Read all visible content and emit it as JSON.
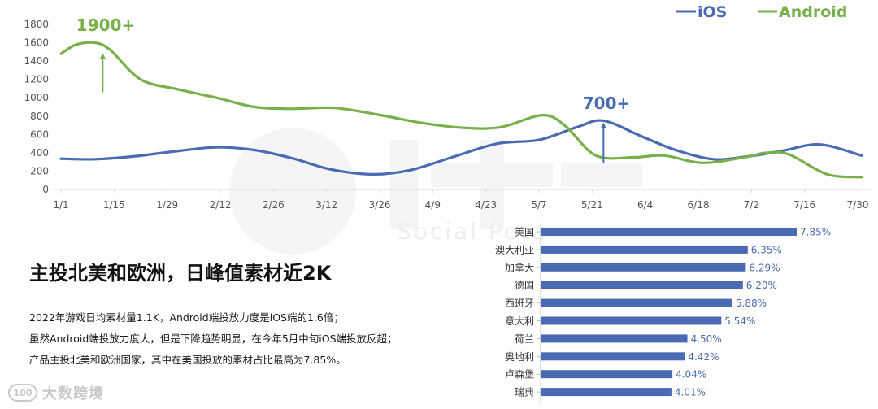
{
  "chart_data": [
    {
      "type": "line",
      "title": "",
      "xlabel": "",
      "ylabel": "",
      "ylim": [
        0,
        1800
      ],
      "y_ticks": [
        0,
        200,
        400,
        600,
        800,
        1000,
        1200,
        1400,
        1600,
        1800
      ],
      "grid": false,
      "legend": "top-right",
      "x_date_ticks": [
        "2022-01-01",
        "2022-01-15",
        "2022-01-29",
        "2022-02-12",
        "2022-02-26",
        "2022-03-12",
        "2022-03-26",
        "2022-04-09",
        "2022-04-23",
        "2022-05-07",
        "2022-05-21",
        "2022-06-04",
        "2022-06-18",
        "2022-07-02",
        "2022-07-16",
        "2022-07-30"
      ],
      "x_tick_labels": [
        "1/1",
        "1/15",
        "1/29",
        "2/12",
        "2/26",
        "3/12",
        "3/26",
        "4/9",
        "4/23",
        "5/7",
        "5/21",
        "6/4",
        "6/18",
        "7/2",
        "7/16",
        "7/30"
      ],
      "series": [
        {
          "name": "iOS",
          "color": "#4a6bb3",
          "points": [
            [
              "2022-01-01",
              335
            ],
            [
              "2022-01-10",
              330
            ],
            [
              "2022-01-20",
              360
            ],
            [
              "2022-02-01",
              420
            ],
            [
              "2022-02-11",
              460
            ],
            [
              "2022-02-21",
              430
            ],
            [
              "2022-03-03",
              340
            ],
            [
              "2022-03-13",
              220
            ],
            [
              "2022-03-24",
              165
            ],
            [
              "2022-04-03",
              210
            ],
            [
              "2022-04-14",
              350
            ],
            [
              "2022-04-26",
              500
            ],
            [
              "2022-05-07",
              540
            ],
            [
              "2022-05-17",
              680
            ],
            [
              "2022-05-24",
              750
            ],
            [
              "2022-06-03",
              580
            ],
            [
              "2022-06-12",
              430
            ],
            [
              "2022-06-22",
              330
            ],
            [
              "2022-07-01",
              360
            ],
            [
              "2022-07-10",
              420
            ],
            [
              "2022-07-20",
              490
            ],
            [
              "2022-07-31",
              370
            ]
          ]
        },
        {
          "name": "Android",
          "color": "#78b04a",
          "points": [
            [
              "2022-01-01",
              1480
            ],
            [
              "2022-01-05",
              1580
            ],
            [
              "2022-01-10",
              1600
            ],
            [
              "2022-01-14",
              1520
            ],
            [
              "2022-01-22",
              1200
            ],
            [
              "2022-02-01",
              1090
            ],
            [
              "2022-02-11",
              1000
            ],
            [
              "2022-02-21",
              900
            ],
            [
              "2022-03-03",
              880
            ],
            [
              "2022-03-14",
              890
            ],
            [
              "2022-03-25",
              820
            ],
            [
              "2022-04-07",
              720
            ],
            [
              "2022-04-18",
              670
            ],
            [
              "2022-04-27",
              680
            ],
            [
              "2022-05-08",
              810
            ],
            [
              "2022-05-14",
              690
            ],
            [
              "2022-05-22",
              370
            ],
            [
              "2022-06-01",
              350
            ],
            [
              "2022-06-09",
              370
            ],
            [
              "2022-06-19",
              290
            ],
            [
              "2022-06-30",
              350
            ],
            [
              "2022-07-06",
              400
            ],
            [
              "2022-07-12",
              380
            ],
            [
              "2022-07-22",
              165
            ],
            [
              "2022-07-31",
              135
            ]
          ]
        }
      ],
      "annotations": [
        {
          "text": "1900+",
          "date": "2022-01-12",
          "arrow_from": 1060,
          "arrow_to": 1480,
          "series": "Android"
        },
        {
          "text": "700+",
          "date": "2022-05-24",
          "arrow_from": 290,
          "arrow_to": 720,
          "series": "iOS"
        }
      ]
    },
    {
      "type": "bar",
      "orientation": "horizontal",
      "title": "",
      "xlabel": "",
      "ylabel": "",
      "color": "#4a6bb3",
      "categories": [
        "美国",
        "澳大利亚",
        "加拿大",
        "德国",
        "西班牙",
        "意大利",
        "荷兰",
        "奥地利",
        "卢森堡",
        "瑞典"
      ],
      "values": [
        7.85,
        6.35,
        6.29,
        6.2,
        5.88,
        5.54,
        4.5,
        4.42,
        4.04,
        4.01
      ],
      "value_labels": [
        "7.85%",
        "6.35%",
        "6.29%",
        "6.20%",
        "5.88%",
        "5.54%",
        "4.50%",
        "4.42%",
        "4.04%",
        "4.01%"
      ]
    }
  ],
  "headline": "主投北美和欧洲，日峰值素材近2K",
  "body_lines": [
    "2022年游戏日均素材量1.1K，Android端投放力度是iOS端的1.6倍；",
    "虽然Android端投放力度大，但是下降趋势明显，在今年5月中旬iOS端投放反超；",
    "产品主投北美和欧洲国家，其中在美国投放的素材占比最高为7.85%。"
  ],
  "watermark": {
    "text": "Social Peta",
    "icon": "social-peta-watermark-icon"
  },
  "logo": {
    "text": "大数跨境",
    "icon": "dashu-logo-icon",
    "mark": "100"
  },
  "colors": {
    "ios": "#4a6bb3",
    "android": "#78b04a",
    "axis": "#d9d9d9",
    "tick": "#555555"
  }
}
